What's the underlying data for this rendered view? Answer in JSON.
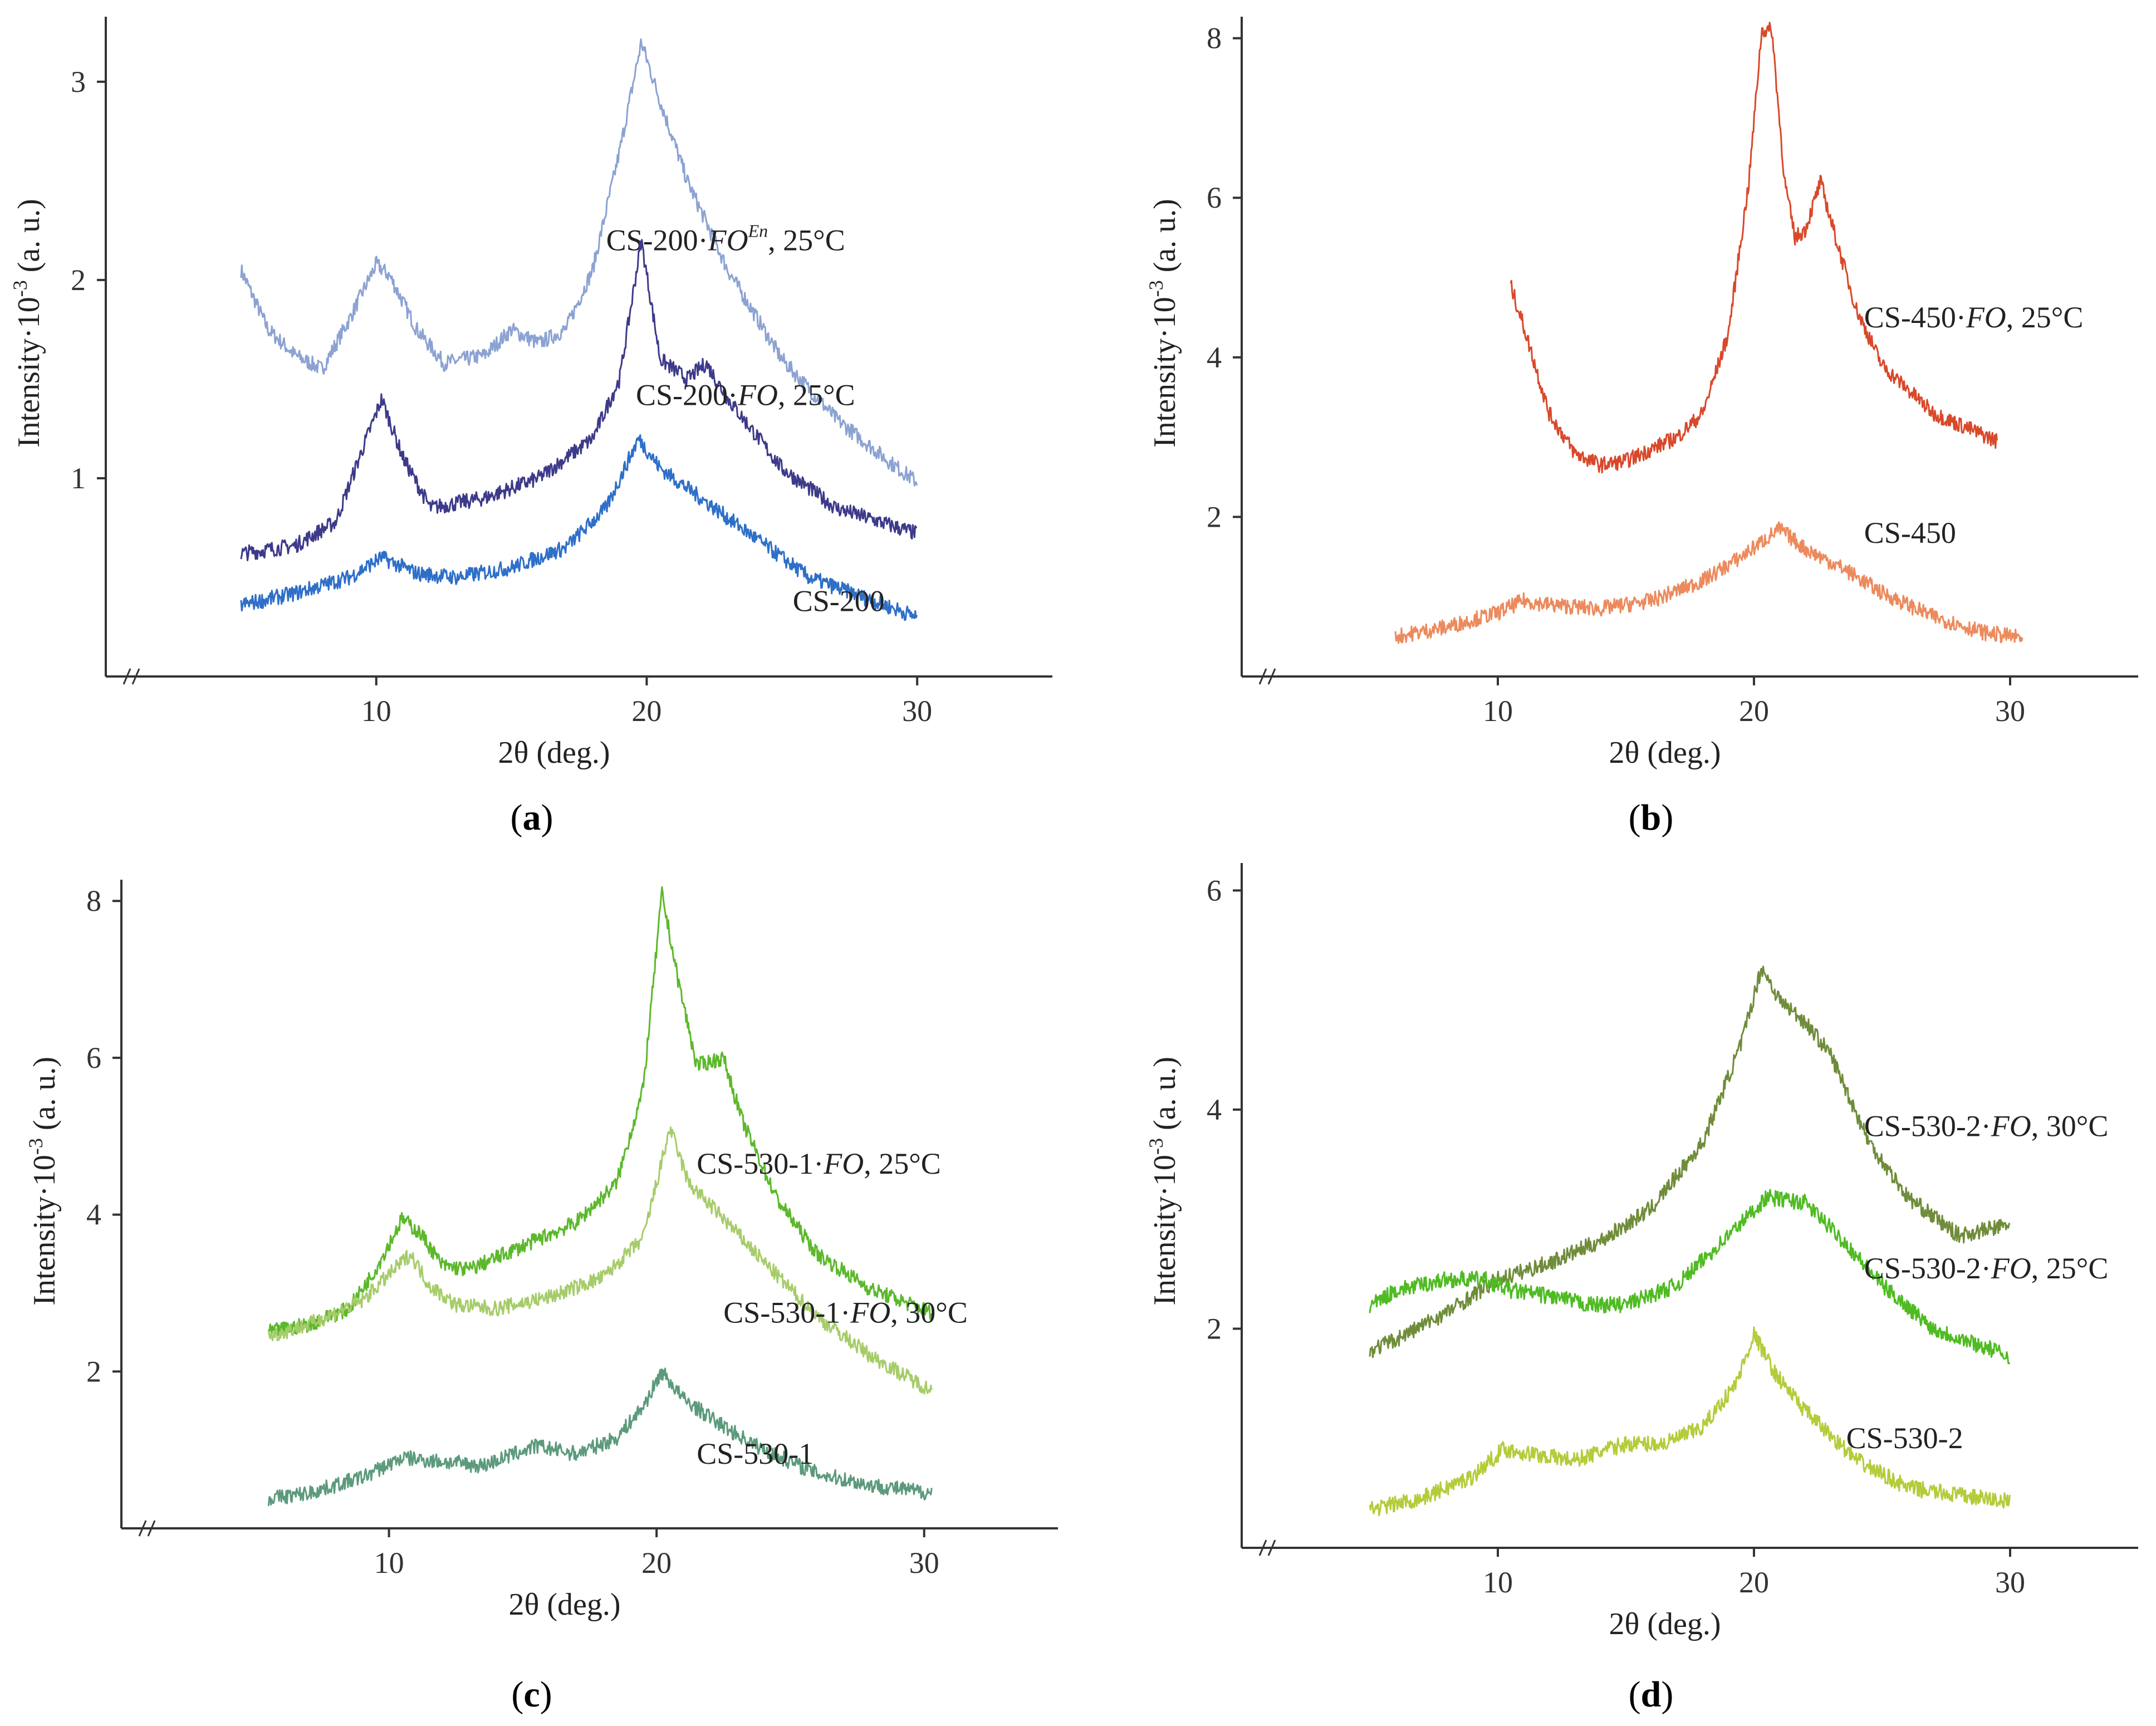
{
  "chart_data": [
    {
      "panel": "a",
      "type": "line",
      "xlabel": "2θ (deg.)",
      "ylabel": "Intensity·10",
      "ylabel_sup": "-3",
      "ylabel_unit": "(a. u.)",
      "xlim": [
        0,
        35
      ],
      "ylim": [
        0,
        3.3
      ],
      "xticks": [
        10,
        20,
        30
      ],
      "yticks": [
        1,
        2,
        3
      ],
      "series": [
        {
          "name": "CS-200·FO^En, 25°C",
          "label_parts": [
            "CS-200·",
            "FO",
            "En",
            ", 25°C"
          ],
          "color": "#8ba2d2",
          "points": [
            [
              5,
              2.05
            ],
            [
              6,
              1.75
            ],
            [
              7,
              1.62
            ],
            [
              8,
              1.55
            ],
            [
              9,
              1.8
            ],
            [
              10,
              2.08
            ],
            [
              10.5,
              2.02
            ],
            [
              11.5,
              1.75
            ],
            [
              12.5,
              1.58
            ],
            [
              14,
              1.62
            ],
            [
              15,
              1.75
            ],
            [
              16,
              1.68
            ],
            [
              17,
              1.75
            ],
            [
              18,
              2.05
            ],
            [
              19,
              2.65
            ],
            [
              19.8,
              3.2
            ],
            [
              20.5,
              2.9
            ],
            [
              21.5,
              2.5
            ],
            [
              23,
              2.05
            ],
            [
              25,
              1.6
            ],
            [
              27,
              1.3
            ],
            [
              29,
              1.08
            ],
            [
              30,
              0.98
            ]
          ]
        },
        {
          "name": "CS-200·FO, 25°C",
          "label_parts": [
            "CS-200·",
            "FO",
            "",
            ", 25°C"
          ],
          "color": "#3d3a8a",
          "points": [
            [
              5,
              0.62
            ],
            [
              7,
              0.66
            ],
            [
              8.5,
              0.78
            ],
            [
              9.5,
              1.15
            ],
            [
              10.2,
              1.4
            ],
            [
              11,
              1.1
            ],
            [
              12,
              0.85
            ],
            [
              14,
              0.9
            ],
            [
              16,
              1.0
            ],
            [
              18,
              1.2
            ],
            [
              19,
              1.5
            ],
            [
              19.8,
              2.2
            ],
            [
              20.5,
              1.6
            ],
            [
              21.5,
              1.5
            ],
            [
              22.2,
              1.58
            ],
            [
              23,
              1.4
            ],
            [
              25,
              1.05
            ],
            [
              27,
              0.85
            ],
            [
              30,
              0.72
            ]
          ]
        },
        {
          "name": "CS-200",
          "label_parts": [
            "CS-200",
            "",
            "",
            ""
          ],
          "color": "#2e6fc8",
          "points": [
            [
              5,
              0.36
            ],
            [
              7,
              0.42
            ],
            [
              9,
              0.5
            ],
            [
              10.2,
              0.6
            ],
            [
              11.5,
              0.52
            ],
            [
              13,
              0.5
            ],
            [
              15,
              0.55
            ],
            [
              17,
              0.65
            ],
            [
              18.5,
              0.85
            ],
            [
              19.7,
              1.2
            ],
            [
              20.5,
              1.05
            ],
            [
              22,
              0.9
            ],
            [
              24,
              0.7
            ],
            [
              26,
              0.5
            ],
            [
              28,
              0.4
            ],
            [
              30,
              0.3
            ]
          ]
        }
      ],
      "label_anchor_x": [
        18.5,
        19.6,
        25.4
      ],
      "label_anchor_y": [
        2.2,
        1.42,
        0.38
      ]
    },
    {
      "panel": "b",
      "type": "line",
      "xlabel": "2θ (deg.)",
      "ylabel": "Intensity·10",
      "ylabel_sup": "-3",
      "ylabel_unit": "(a. u.)",
      "xlim": [
        0,
        35
      ],
      "ylim": [
        0,
        8.2
      ],
      "xticks": [
        10,
        20,
        30
      ],
      "yticks": [
        2,
        4,
        6,
        8
      ],
      "series": [
        {
          "name": "CS-450·FO, 25°C",
          "label_parts": [
            "CS-450·",
            "FO",
            "",
            ", 25°C"
          ],
          "color": "#d9482a",
          "points": [
            [
              10.5,
              4.9
            ],
            [
              11,
              4.4
            ],
            [
              12,
              3.3
            ],
            [
              13,
              2.8
            ],
            [
              14,
              2.65
            ],
            [
              15,
              2.7
            ],
            [
              16,
              2.85
            ],
            [
              17,
              3.0
            ],
            [
              18,
              3.3
            ],
            [
              19,
              4.3
            ],
            [
              19.8,
              6.2
            ],
            [
              20.3,
              8.1
            ],
            [
              20.7,
              8.1
            ],
            [
              21.2,
              6.2
            ],
            [
              21.6,
              5.5
            ],
            [
              22,
              5.6
            ],
            [
              22.6,
              6.2
            ],
            [
              23.1,
              5.6
            ],
            [
              24,
              4.6
            ],
            [
              25,
              3.9
            ],
            [
              27,
              3.3
            ],
            [
              29.5,
              2.95
            ]
          ]
        },
        {
          "name": "CS-450",
          "label_parts": [
            "CS-450",
            "",
            "",
            ""
          ],
          "color": "#ec8a5d",
          "points": [
            [
              6,
              0.5
            ],
            [
              8,
              0.62
            ],
            [
              10,
              0.8
            ],
            [
              11,
              0.95
            ],
            [
              12,
              0.9
            ],
            [
              14,
              0.85
            ],
            [
              16,
              0.95
            ],
            [
              18,
              1.2
            ],
            [
              19.5,
              1.5
            ],
            [
              21,
              1.85
            ],
            [
              22,
              1.6
            ],
            [
              23.5,
              1.35
            ],
            [
              25,
              1.05
            ],
            [
              27,
              0.75
            ],
            [
              29,
              0.55
            ],
            [
              30.5,
              0.48
            ]
          ]
        }
      ],
      "label_anchor_x": [
        24.3,
        24.3
      ],
      "label_anchor_y": [
        4.5,
        1.8
      ]
    },
    {
      "panel": "c",
      "type": "line",
      "xlabel": "2θ (deg.)",
      "ylabel": "Intensity·10",
      "ylabel_sup": "-3",
      "ylabel_unit": "(a. u.)",
      "xlim": [
        0,
        35
      ],
      "ylim": [
        0,
        8.2
      ],
      "xticks": [
        10,
        20,
        30
      ],
      "yticks": [
        2,
        4,
        6,
        8
      ],
      "series": [
        {
          "name": "CS-530-1·FO, 25°C",
          "label_parts": [
            "CS-530-1·",
            "FO",
            "",
            ", 25°C"
          ],
          "color": "#5cb82b",
          "points": [
            [
              5.5,
              2.5
            ],
            [
              7,
              2.6
            ],
            [
              8.5,
              2.8
            ],
            [
              9.5,
              3.3
            ],
            [
              10.5,
              3.95
            ],
            [
              11.2,
              3.75
            ],
            [
              12,
              3.35
            ],
            [
              13,
              3.3
            ],
            [
              15,
              3.6
            ],
            [
              17,
              3.9
            ],
            [
              18.5,
              4.4
            ],
            [
              19.5,
              5.6
            ],
            [
              20.2,
              8.1
            ],
            [
              20.8,
              7.0
            ],
            [
              21.5,
              5.9
            ],
            [
              22.5,
              6.0
            ],
            [
              23.2,
              5.2
            ],
            [
              24.5,
              4.2
            ],
            [
              26,
              3.5
            ],
            [
              28,
              3.05
            ],
            [
              30.3,
              2.75
            ]
          ]
        },
        {
          "name": "CS-530-1·FO, 30°C",
          "label_parts": [
            "CS-530-1·",
            "FO",
            "",
            ", 30°C"
          ],
          "color": "#a6cc6a",
          "points": [
            [
              5.5,
              2.45
            ],
            [
              7,
              2.6
            ],
            [
              9,
              2.9
            ],
            [
              10.2,
              3.3
            ],
            [
              10.8,
              3.5
            ],
            [
              11.5,
              3.1
            ],
            [
              12.5,
              2.85
            ],
            [
              14,
              2.8
            ],
            [
              16,
              2.95
            ],
            [
              18,
              3.2
            ],
            [
              19.5,
              3.7
            ],
            [
              20.5,
              5.1
            ],
            [
              21.2,
              4.4
            ],
            [
              22.5,
              3.95
            ],
            [
              24,
              3.4
            ],
            [
              26,
              2.7
            ],
            [
              28,
              2.2
            ],
            [
              30.3,
              1.75
            ]
          ]
        },
        {
          "name": "CS-530-1",
          "label_parts": [
            "CS-530-1",
            "",
            "",
            ""
          ],
          "color": "#5c9a7c",
          "points": [
            [
              5.5,
              0.38
            ],
            [
              7,
              0.45
            ],
            [
              9,
              0.65
            ],
            [
              10.5,
              0.9
            ],
            [
              12,
              0.85
            ],
            [
              13.5,
              0.8
            ],
            [
              15.5,
              1.05
            ],
            [
              17,
              0.95
            ],
            [
              18.5,
              1.15
            ],
            [
              19.5,
              1.55
            ],
            [
              20.2,
              2.0
            ],
            [
              21,
              1.65
            ],
            [
              22.5,
              1.3
            ],
            [
              24,
              1.0
            ],
            [
              26,
              0.7
            ],
            [
              28,
              0.55
            ],
            [
              30.3,
              0.45
            ]
          ]
        }
      ],
      "label_anchor_x": [
        21.5,
        22.5,
        21.5
      ],
      "label_anchor_y": [
        4.65,
        2.75,
        0.95
      ]
    },
    {
      "panel": "d",
      "type": "line",
      "xlabel": "2θ (deg.)",
      "ylabel": "Intensity·10",
      "ylabel_sup": "-3",
      "ylabel_unit": "(a. u.)",
      "xlim": [
        0,
        35
      ],
      "ylim": [
        0,
        6.2
      ],
      "xticks": [
        10,
        20,
        30
      ],
      "yticks": [
        2,
        4,
        6
      ],
      "series": [
        {
          "name": "CS-530-2·FO, 30°C",
          "label_parts": [
            "CS-530-2·",
            "FO",
            "",
            ", 30°C"
          ],
          "color": "#6f8c3a",
          "points": [
            [
              5,
              1.8
            ],
            [
              6,
              1.9
            ],
            [
              8,
              2.15
            ],
            [
              10,
              2.45
            ],
            [
              12,
              2.6
            ],
            [
              14,
              2.8
            ],
            [
              16,
              3.1
            ],
            [
              18,
              3.7
            ],
            [
              19.5,
              4.6
            ],
            [
              20.3,
              5.3
            ],
            [
              21,
              5.0
            ],
            [
              22,
              4.8
            ],
            [
              23,
              4.5
            ],
            [
              24.5,
              3.7
            ],
            [
              26,
              3.2
            ],
            [
              28,
              2.85
            ],
            [
              30,
              2.95
            ]
          ]
        },
        {
          "name": "CS-530-2·FO, 25°C",
          "label_parts": [
            "CS-530-2·",
            "FO",
            "",
            ", 25°C"
          ],
          "color": "#4fbb22",
          "points": [
            [
              5,
              2.2
            ],
            [
              6,
              2.35
            ],
            [
              8,
              2.45
            ],
            [
              9.5,
              2.45
            ],
            [
              10.5,
              2.35
            ],
            [
              12,
              2.3
            ],
            [
              13.5,
              2.22
            ],
            [
              15,
              2.22
            ],
            [
              17,
              2.4
            ],
            [
              19,
              2.85
            ],
            [
              20.5,
              3.2
            ],
            [
              22,
              3.15
            ],
            [
              23.5,
              2.8
            ],
            [
              25,
              2.4
            ],
            [
              27,
              2.0
            ],
            [
              30,
              1.75
            ]
          ]
        },
        {
          "name": "CS-530-2",
          "label_parts": [
            "CS-530-2",
            "",
            "",
            ""
          ],
          "color": "#b3cc3a",
          "points": [
            [
              5,
              0.35
            ],
            [
              7,
              0.45
            ],
            [
              9,
              0.65
            ],
            [
              10.2,
              0.9
            ],
            [
              11.5,
              0.85
            ],
            [
              13,
              0.8
            ],
            [
              15,
              0.95
            ],
            [
              16.5,
              0.95
            ],
            [
              18,
              1.1
            ],
            [
              19.3,
              1.5
            ],
            [
              20,
              1.95
            ],
            [
              20.8,
              1.6
            ],
            [
              22,
              1.25
            ],
            [
              24,
              0.8
            ],
            [
              26,
              0.55
            ],
            [
              28,
              0.48
            ],
            [
              30,
              0.42
            ]
          ]
        }
      ],
      "label_anchor_x": [
        24.3,
        24.3,
        23.6
      ],
      "label_anchor_y": [
        3.85,
        2.55,
        1.0
      ]
    }
  ],
  "panel_labels": [
    "(a)",
    "(b)",
    "(c)",
    "(d)"
  ]
}
